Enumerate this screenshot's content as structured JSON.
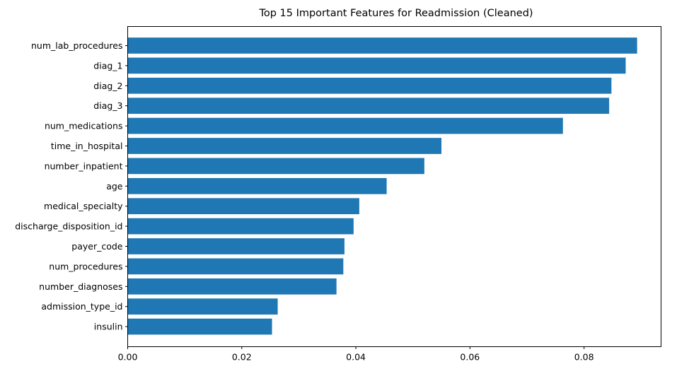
{
  "chart_data": {
    "type": "bar",
    "orientation": "horizontal",
    "title": "Top 15 Important Features for Readmission (Cleaned)",
    "xlabel": "",
    "ylabel": "",
    "xlim": [
      0,
      0.0935
    ],
    "xticks": [
      0.0,
      0.02,
      0.04,
      0.06,
      0.08
    ],
    "xtick_labels": [
      "0.00",
      "0.02",
      "0.04",
      "0.06",
      "0.08"
    ],
    "grid": false,
    "legend": "none",
    "bar_color": "#1f77b4",
    "categories": [
      "num_lab_procedures",
      "diag_1",
      "diag_2",
      "diag_3",
      "num_medications",
      "time_in_hospital",
      "number_inpatient",
      "age",
      "medical_specialty",
      "discharge_disposition_id",
      "payer_code",
      "num_procedures",
      "number_diagnoses",
      "admission_type_id",
      "insulin"
    ],
    "values": [
      0.0893,
      0.0873,
      0.0848,
      0.0844,
      0.0763,
      0.055,
      0.052,
      0.0454,
      0.0406,
      0.0396,
      0.038,
      0.0378,
      0.0366,
      0.0263,
      0.0253
    ]
  }
}
